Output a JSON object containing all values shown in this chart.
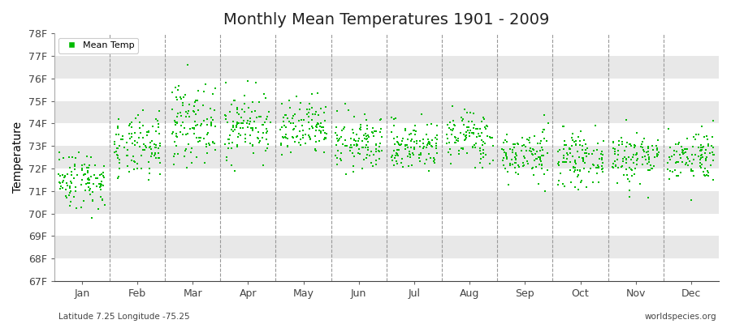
{
  "title": "Monthly Mean Temperatures 1901 - 2009",
  "ylabel": "Temperature",
  "xlabel_bottom_left": "Latitude 7.25 Longitude -75.25",
  "xlabel_bottom_right": "worldspecies.org",
  "legend_label": "Mean Temp",
  "marker_color": "#00bb00",
  "plot_bg_color": "#e8e8e8",
  "outer_bg_color": "#ffffff",
  "ytick_labels": [
    "67F",
    "68F",
    "69F",
    "70F",
    "71F",
    "72F",
    "73F",
    "74F",
    "75F",
    "76F",
    "77F",
    "78F"
  ],
  "ytick_values": [
    67,
    68,
    69,
    70,
    71,
    72,
    73,
    74,
    75,
    76,
    77,
    78
  ],
  "ylim": [
    67,
    78
  ],
  "months": [
    "Jan",
    "Feb",
    "Mar",
    "Apr",
    "May",
    "Jun",
    "Jul",
    "Aug",
    "Sep",
    "Oct",
    "Nov",
    "Dec"
  ],
  "month_positions": [
    0.5,
    1.5,
    2.5,
    3.5,
    4.5,
    5.5,
    6.5,
    7.5,
    8.5,
    9.5,
    10.5,
    11.5
  ],
  "dashed_lines": [
    1,
    2,
    3,
    4,
    5,
    6,
    7,
    8,
    9,
    10,
    11
  ],
  "num_years": 109,
  "seed": 42,
  "mean_temps": [
    71.5,
    72.9,
    74.0,
    73.9,
    73.7,
    73.1,
    73.0,
    73.4,
    72.6,
    72.4,
    72.5,
    72.6
  ],
  "std_temps": [
    0.65,
    0.7,
    0.85,
    0.75,
    0.65,
    0.6,
    0.55,
    0.6,
    0.55,
    0.55,
    0.6,
    0.58
  ],
  "marker_size": 4,
  "title_fontsize": 14,
  "axis_fontsize": 9,
  "ylabel_fontsize": 10
}
